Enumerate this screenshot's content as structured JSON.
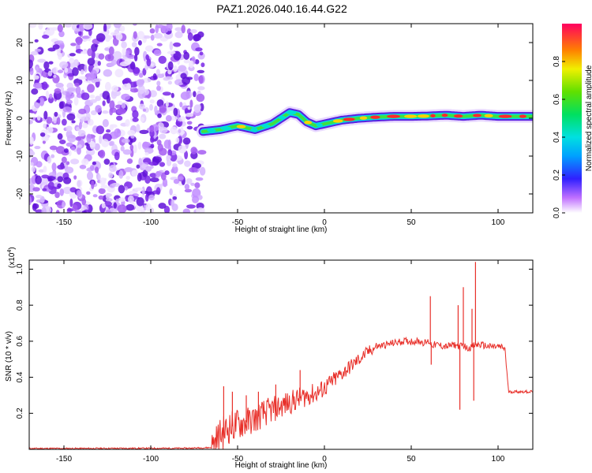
{
  "title": "PAZ1.2026.040.16.44.G22",
  "chart_data": [
    {
      "type": "heatmap",
      "title": "PAZ1.2026.040.16.44.G22",
      "xlabel": "Height of straight line (km)",
      "ylabel": "Frequency (Hz)",
      "xlim": [
        -170,
        120
      ],
      "ylim": [
        -25,
        25
      ],
      "xticks": [
        -150,
        -100,
        -50,
        0,
        50,
        100
      ],
      "yticks": [
        -20,
        -10,
        0,
        10,
        20
      ],
      "description_regions": {
        "noise_x_range": [
          -170,
          -70
        ],
        "signal_trace": {
          "x": [
            -70,
            -60,
            -50,
            -40,
            -30,
            -20,
            -15,
            -10,
            -5,
            0,
            10,
            20,
            30,
            40,
            50,
            60,
            70,
            80,
            90,
            100,
            110,
            120
          ],
          "y": [
            -3.5,
            -3,
            -2,
            -3,
            -1.5,
            1.5,
            1,
            -1,
            -2,
            -1.5,
            -0.5,
            0,
            0.3,
            0.5,
            0.5,
            0.6,
            0.8,
            0.5,
            0.8,
            0.5,
            0.5,
            0.5
          ]
        }
      },
      "colorbar": {
        "label": "Normalized spectral amplitude",
        "ticks": [
          "0.0",
          "0.2",
          "0.4",
          "0.6",
          "0.8"
        ],
        "range": [
          0,
          1
        ]
      }
    },
    {
      "type": "line",
      "xlabel": "Height of straight line (km)",
      "ylabel": "SNR (10 * v/v)",
      "scale_label": "(x10",
      "scale_exp": "4",
      "scale_close": ")",
      "xlim": [
        -170,
        120
      ],
      "ylim": [
        0,
        1.05
      ],
      "xticks": [
        -150,
        -100,
        -50,
        0,
        50,
        100
      ],
      "yticks": [
        "0.2",
        "0.4",
        "0.6",
        "0.8",
        "1.0"
      ],
      "color": "#e8302a",
      "series": [
        {
          "name": "SNR",
          "x": [
            -170,
            -140,
            -110,
            -80,
            -65,
            -60,
            -55,
            -50,
            -45,
            -40,
            -35,
            -30,
            -25,
            -20,
            -15,
            -10,
            -5,
            0,
            5,
            10,
            15,
            20,
            25,
            30,
            35,
            40,
            45,
            50,
            55,
            58,
            60,
            62,
            65,
            70,
            75,
            78,
            80,
            82,
            85,
            87,
            90,
            95,
            100,
            104,
            106,
            110,
            115,
            120
          ],
          "y": [
            0.005,
            0.005,
            0.006,
            0.006,
            0.01,
            0.08,
            0.12,
            0.14,
            0.15,
            0.17,
            0.2,
            0.22,
            0.24,
            0.26,
            0.28,
            0.3,
            0.31,
            0.34,
            0.38,
            0.42,
            0.46,
            0.5,
            0.54,
            0.57,
            0.58,
            0.59,
            0.6,
            0.6,
            0.6,
            0.59,
            0.6,
            0.58,
            0.58,
            0.57,
            0.58,
            0.57,
            0.58,
            0.56,
            0.57,
            0.58,
            0.58,
            0.57,
            0.57,
            0.56,
            0.32,
            0.32,
            0.32,
            0.32
          ]
        }
      ],
      "spikes": [
        {
          "x": -58,
          "y": 0.35
        },
        {
          "x": -53,
          "y": 0.32
        },
        {
          "x": -45,
          "y": 0.3
        },
        {
          "x": -38,
          "y": 0.32
        },
        {
          "x": -28,
          "y": 0.36
        },
        {
          "x": -14,
          "y": 0.44
        },
        {
          "x": 61,
          "y": 0.85
        },
        {
          "x": 61.5,
          "y": 0.47
        },
        {
          "x": 77,
          "y": 0.8
        },
        {
          "x": 78,
          "y": 0.22
        },
        {
          "x": 80,
          "y": 0.9
        },
        {
          "x": 85,
          "y": 0.78
        },
        {
          "x": 86,
          "y": 0.27
        },
        {
          "x": 87,
          "y": 1.04
        }
      ]
    }
  ]
}
